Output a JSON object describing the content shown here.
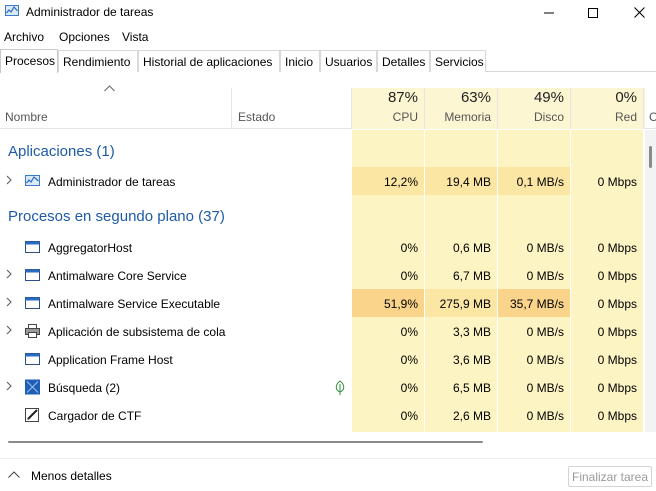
{
  "window": {
    "title": "Administrador de tareas",
    "app_icon": "task-manager-icon"
  },
  "menu": [
    "Archivo",
    "Opciones",
    "Vista"
  ],
  "tabs": [
    {
      "label": "Procesos",
      "active": true
    },
    {
      "label": "Rendimiento",
      "active": false
    },
    {
      "label": "Historial de aplicaciones",
      "active": false
    },
    {
      "label": "Inicio",
      "active": false
    },
    {
      "label": "Usuarios",
      "active": false
    },
    {
      "label": "Detalles",
      "active": false
    },
    {
      "label": "Servicios",
      "active": false
    }
  ],
  "columns": {
    "name": "Nombre",
    "status": "Estado",
    "cpu": {
      "pct": "87%",
      "label": "CPU"
    },
    "memory": {
      "pct": "63%",
      "label": "Memoria"
    },
    "disk": {
      "pct": "49%",
      "label": "Disco"
    },
    "network": {
      "pct": "0%",
      "label": "Red"
    },
    "next_partial": "C"
  },
  "groups": {
    "apps": {
      "title": "Aplicaciones (1)",
      "rows": [
        {
          "name": "Administrador de tareas",
          "icon": "task-manager-icon",
          "expandable": true,
          "cpu": "12,2%",
          "memory": "19,4 MB",
          "disk": "0,1 MB/s",
          "network": "0 Mbps"
        }
      ]
    },
    "background": {
      "title": "Procesos en segundo plano (37)",
      "rows": [
        {
          "name": "AggregatorHost",
          "icon": "window-app-icon",
          "expandable": false,
          "cpu": "0%",
          "memory": "0,6 MB",
          "disk": "0 MB/s",
          "network": "0 Mbps"
        },
        {
          "name": "Antimalware Core Service",
          "icon": "window-app-icon",
          "expandable": true,
          "cpu": "0%",
          "memory": "6,7 MB",
          "disk": "0 MB/s",
          "network": "0 Mbps"
        },
        {
          "name": "Antimalware Service Executable",
          "icon": "window-app-icon",
          "expandable": true,
          "cpu": "51,9%",
          "memory": "275,9 MB",
          "disk": "35,7 MB/s",
          "network": "0 Mbps"
        },
        {
          "name": "Aplicación de subsistema de cola",
          "icon": "printer-icon",
          "expandable": true,
          "cpu": "0%",
          "memory": "3,3 MB",
          "disk": "0 MB/s",
          "network": "0 Mbps"
        },
        {
          "name": "Application Frame Host",
          "icon": "window-app-icon",
          "expandable": false,
          "cpu": "0%",
          "memory": "3,6 MB",
          "disk": "0 MB/s",
          "network": "0 Mbps"
        },
        {
          "name": "Búsqueda (2)",
          "icon": "search-app-icon",
          "expandable": true,
          "status_icon": "leaf-icon",
          "cpu": "0%",
          "memory": "6,5 MB",
          "disk": "0 MB/s",
          "network": "0 Mbps"
        },
        {
          "name": "Cargador de CTF",
          "icon": "pen-icon",
          "expandable": false,
          "cpu": "0%",
          "memory": "2,6 MB",
          "disk": "0 MB/s",
          "network": "0 Mbps"
        }
      ]
    }
  },
  "colors": {
    "light_heat": "#fdf4c4",
    "mid_heat": "#fbe6a4",
    "high_heat": "#f9d48a",
    "header_heat": "#fdf6d3",
    "group_title": "#1e5aa8"
  },
  "footer": {
    "less_details": "Menos detalles",
    "end_task": "Finalizar tarea"
  }
}
